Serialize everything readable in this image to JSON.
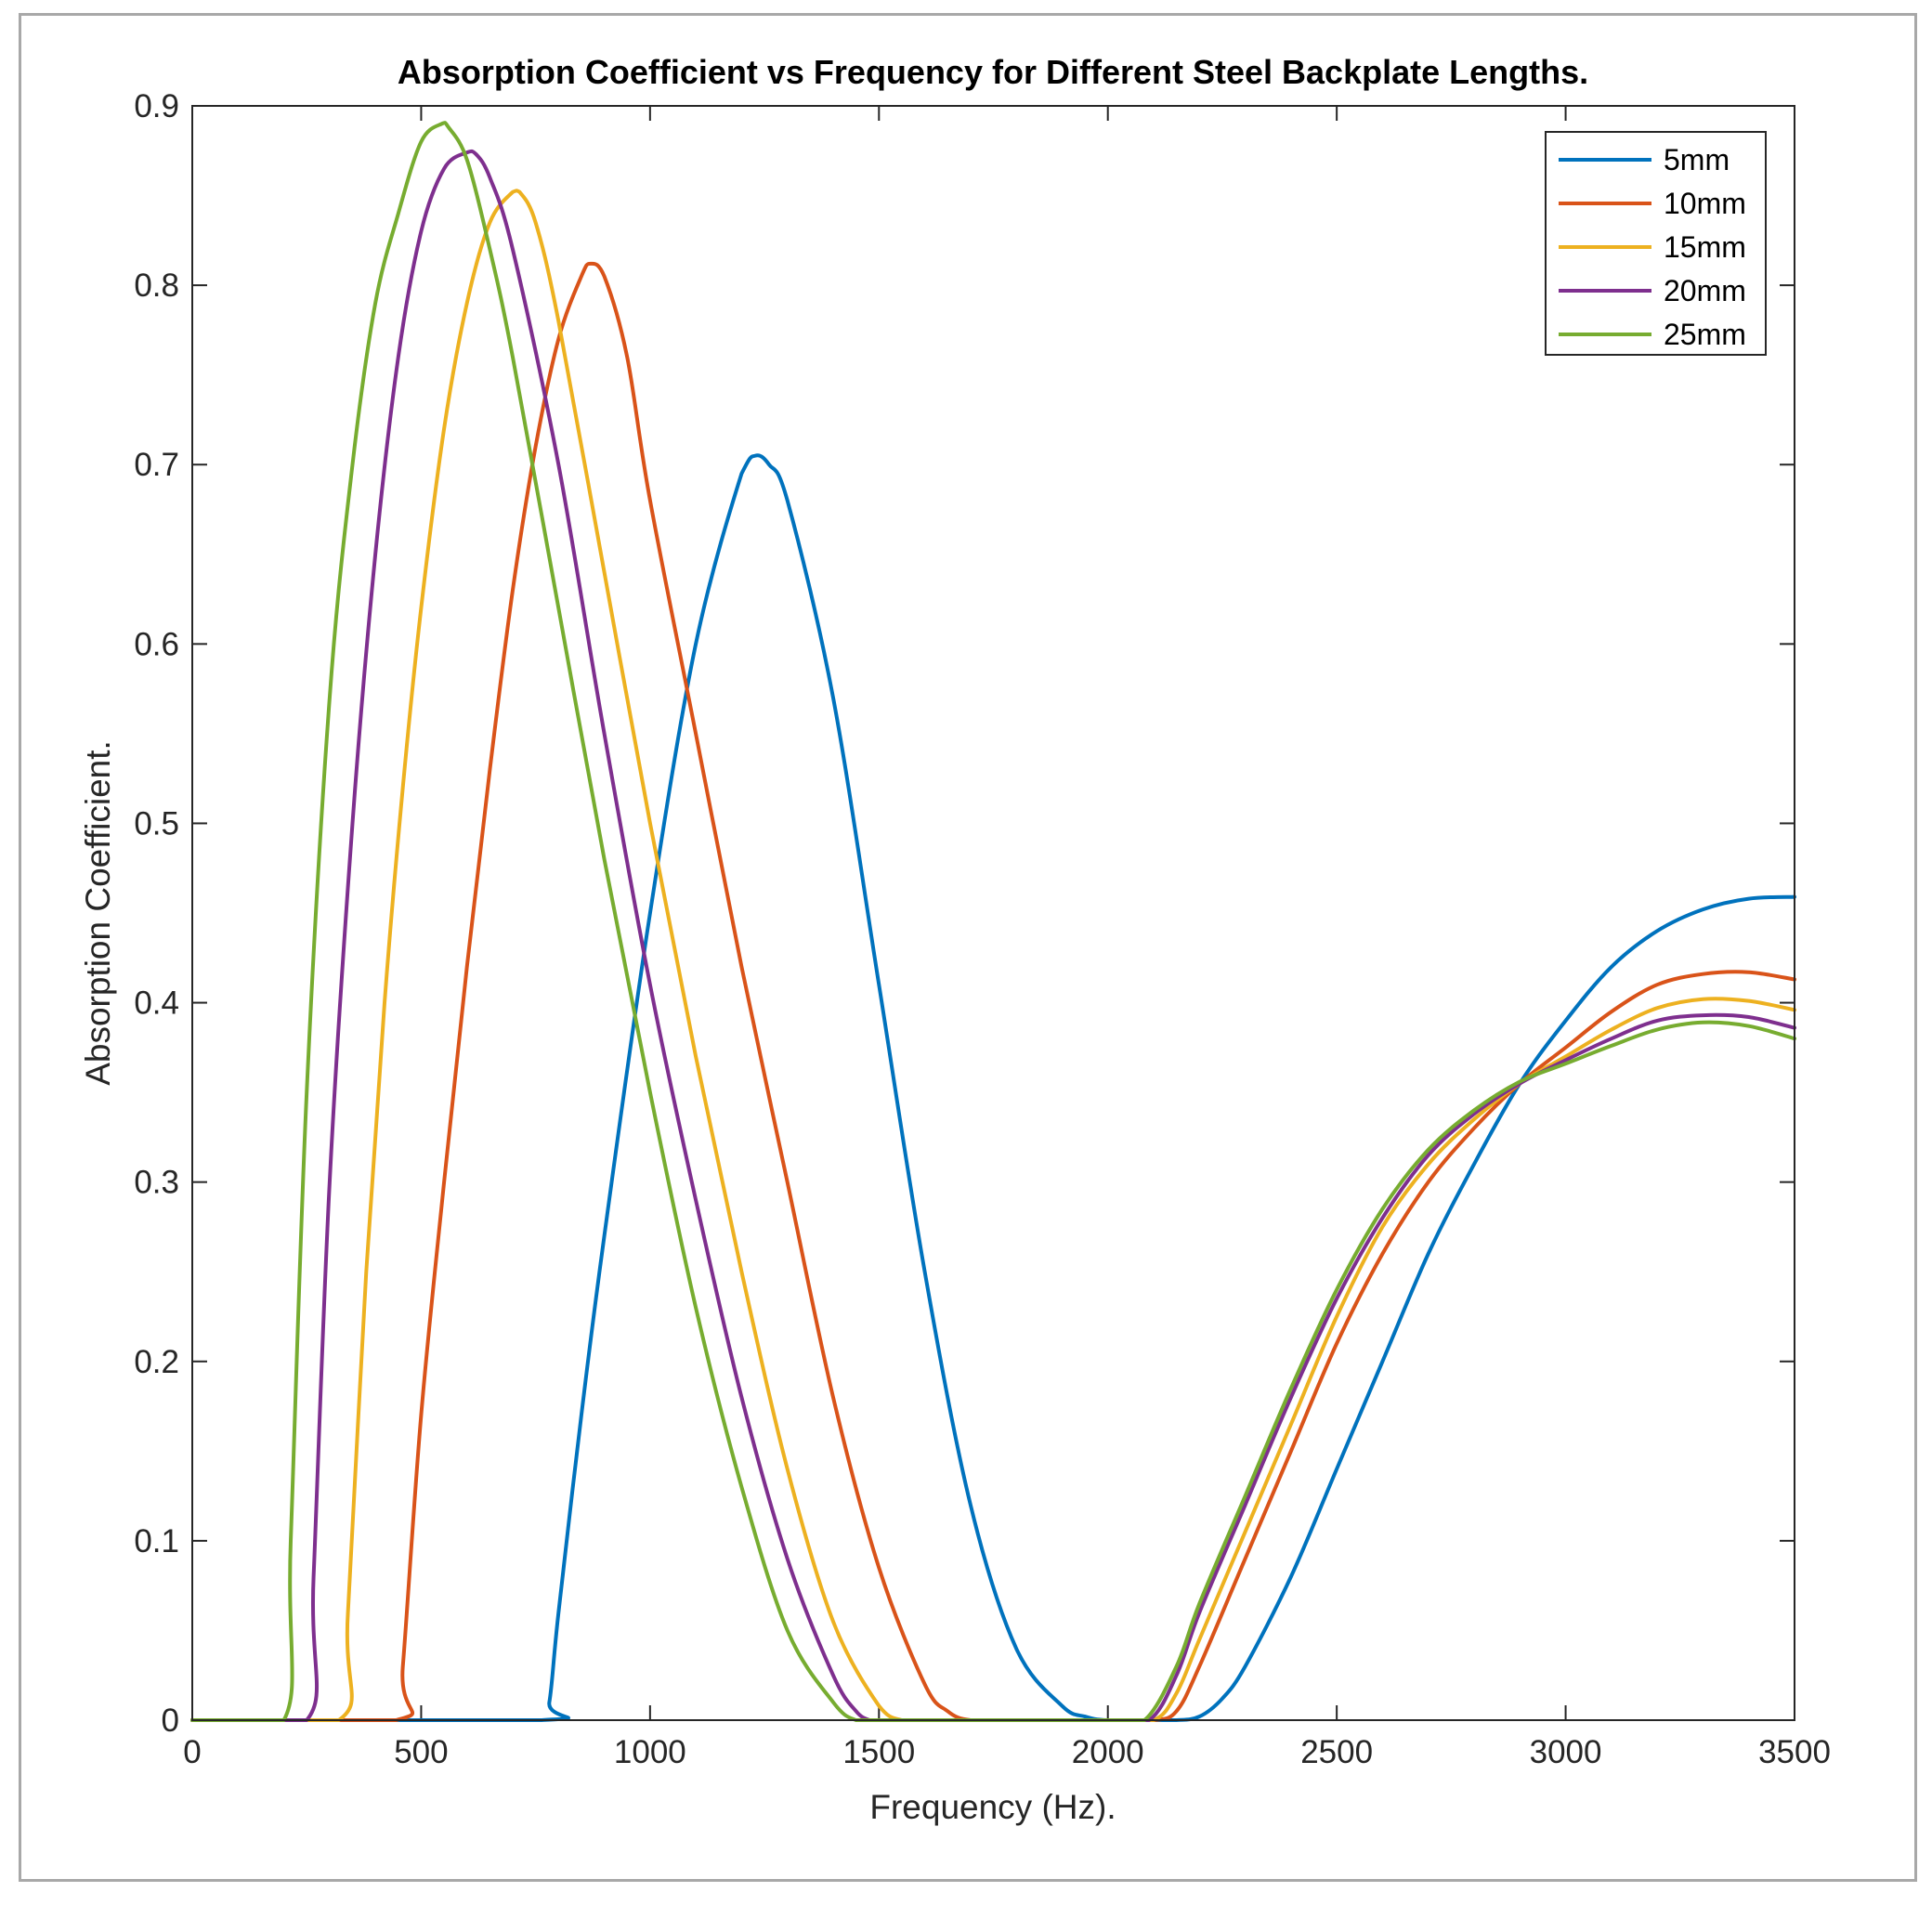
{
  "chart_data": {
    "type": "line",
    "title": "Absorption Coefficient vs Frequency for Different Steel Backplate Lengths.",
    "xlabel": "Frequency (Hz).",
    "ylabel": "Absorption Coefficient.",
    "xlim": [
      0,
      3500
    ],
    "ylim": [
      0,
      0.9
    ],
    "xticks": [
      0,
      500,
      1000,
      1500,
      2000,
      2500,
      3000,
      3500
    ],
    "xtick_labels": [
      "0",
      "500",
      "1000",
      "1500",
      "2000",
      "2500",
      "3000",
      "3500"
    ],
    "yticks": [
      0,
      0.1,
      0.2,
      0.3,
      0.4,
      0.5,
      0.6,
      0.7,
      0.8,
      0.9
    ],
    "ytick_labels": [
      "0",
      "0.1",
      "0.2",
      "0.3",
      "0.4",
      "0.5",
      "0.6",
      "0.7",
      "0.8",
      "0.9"
    ],
    "grid": false,
    "legend_position": "top-right",
    "series": [
      {
        "name": "5mm",
        "color": "#0072BD",
        "x": [
          0,
          760,
          780,
          800,
          850,
          900,
          1000,
          1100,
          1200,
          1230,
          1260,
          1300,
          1400,
          1500,
          1600,
          1700,
          1800,
          1900,
          1950,
          2000,
          2100,
          2150,
          2200,
          2250,
          2300,
          2400,
          2500,
          2600,
          2700,
          2800,
          2900,
          3000,
          3100,
          3200,
          3300,
          3400,
          3500
        ],
        "y": [
          0,
          0,
          0.01,
          0.06,
          0.17,
          0.27,
          0.45,
          0.6,
          0.695,
          0.705,
          0.7,
          0.68,
          0.57,
          0.41,
          0.25,
          0.12,
          0.04,
          0.008,
          0.002,
          0.0,
          0.0,
          0.0,
          0.002,
          0.012,
          0.03,
          0.08,
          0.14,
          0.2,
          0.26,
          0.31,
          0.355,
          0.39,
          0.42,
          0.44,
          0.452,
          0.458,
          0.459
        ]
      },
      {
        "name": "10mm",
        "color": "#D95319",
        "x": [
          0,
          445,
          460,
          500,
          550,
          600,
          650,
          700,
          750,
          800,
          850,
          870,
          900,
          950,
          1000,
          1100,
          1200,
          1300,
          1400,
          1500,
          1600,
          1650,
          1700,
          1800,
          2000,
          2100,
          2150,
          2200,
          2300,
          2400,
          2500,
          2600,
          2700,
          2800,
          2900,
          3000,
          3100,
          3200,
          3300,
          3400,
          3500
        ],
        "y": [
          0,
          0,
          0.03,
          0.17,
          0.3,
          0.42,
          0.53,
          0.63,
          0.71,
          0.77,
          0.805,
          0.812,
          0.805,
          0.76,
          0.68,
          0.55,
          0.42,
          0.3,
          0.18,
          0.085,
          0.02,
          0.005,
          0.0,
          0.0,
          0.0,
          0.0,
          0.005,
          0.03,
          0.09,
          0.15,
          0.21,
          0.26,
          0.3,
          0.33,
          0.355,
          0.375,
          0.395,
          0.41,
          0.416,
          0.417,
          0.413
        ]
      },
      {
        "name": "15mm",
        "color": "#EDB120",
        "x": [
          0,
          320,
          340,
          380,
          420,
          460,
          500,
          550,
          600,
          650,
          700,
          715,
          750,
          800,
          900,
          1000,
          1100,
          1200,
          1300,
          1400,
          1500,
          1550,
          1600,
          1800,
          2000,
          2100,
          2150,
          2200,
          2300,
          2400,
          2500,
          2600,
          2700,
          2800,
          2900,
          3000,
          3100,
          3200,
          3300,
          3400,
          3500
        ],
        "y": [
          0,
          0,
          0.06,
          0.25,
          0.4,
          0.52,
          0.62,
          0.72,
          0.79,
          0.835,
          0.852,
          0.852,
          0.835,
          0.78,
          0.64,
          0.5,
          0.37,
          0.25,
          0.14,
          0.055,
          0.008,
          0.0,
          0.0,
          0.0,
          0.0,
          0.0,
          0.015,
          0.045,
          0.105,
          0.165,
          0.225,
          0.275,
          0.31,
          0.335,
          0.355,
          0.37,
          0.385,
          0.397,
          0.402,
          0.401,
          0.396
        ]
      },
      {
        "name": "20mm",
        "color": "#7E2F8E",
        "x": [
          0,
          250,
          265,
          300,
          350,
          400,
          450,
          500,
          550,
          600,
          620,
          650,
          700,
          800,
          900,
          1000,
          1100,
          1200,
          1300,
          1400,
          1450,
          1480,
          1500,
          1800,
          2000,
          2090,
          2150,
          2200,
          2300,
          2400,
          2500,
          2600,
          2700,
          2800,
          2900,
          3000,
          3100,
          3200,
          3300,
          3400,
          3500
        ],
        "y": [
          0,
          0,
          0.08,
          0.3,
          0.5,
          0.65,
          0.76,
          0.83,
          0.865,
          0.874,
          0.873,
          0.86,
          0.82,
          0.7,
          0.55,
          0.41,
          0.29,
          0.18,
          0.09,
          0.025,
          0.005,
          0.0,
          0.0,
          0.0,
          0.0,
          0.0,
          0.025,
          0.06,
          0.12,
          0.18,
          0.235,
          0.28,
          0.315,
          0.338,
          0.355,
          0.368,
          0.38,
          0.39,
          0.393,
          0.392,
          0.386
        ]
      },
      {
        "name": "25mm",
        "color": "#77AC30",
        "x": [
          0,
          200,
          215,
          250,
          300,
          350,
          400,
          450,
          500,
          545,
          560,
          600,
          650,
          700,
          800,
          900,
          1000,
          1100,
          1200,
          1300,
          1400,
          1450,
          1500,
          1800,
          2000,
          2080,
          2150,
          2200,
          2300,
          2400,
          2500,
          2600,
          2700,
          2800,
          2900,
          3000,
          3100,
          3200,
          3300,
          3400,
          3500
        ],
        "y": [
          0,
          0,
          0.1,
          0.35,
          0.57,
          0.7,
          0.79,
          0.84,
          0.88,
          0.89,
          0.888,
          0.87,
          0.82,
          0.76,
          0.62,
          0.48,
          0.35,
          0.23,
          0.13,
          0.05,
          0.01,
          0.0,
          0.0,
          0.0,
          0.0,
          0.0,
          0.03,
          0.065,
          0.125,
          0.185,
          0.24,
          0.285,
          0.318,
          0.34,
          0.356,
          0.366,
          0.376,
          0.385,
          0.389,
          0.387,
          0.38
        ]
      }
    ]
  }
}
